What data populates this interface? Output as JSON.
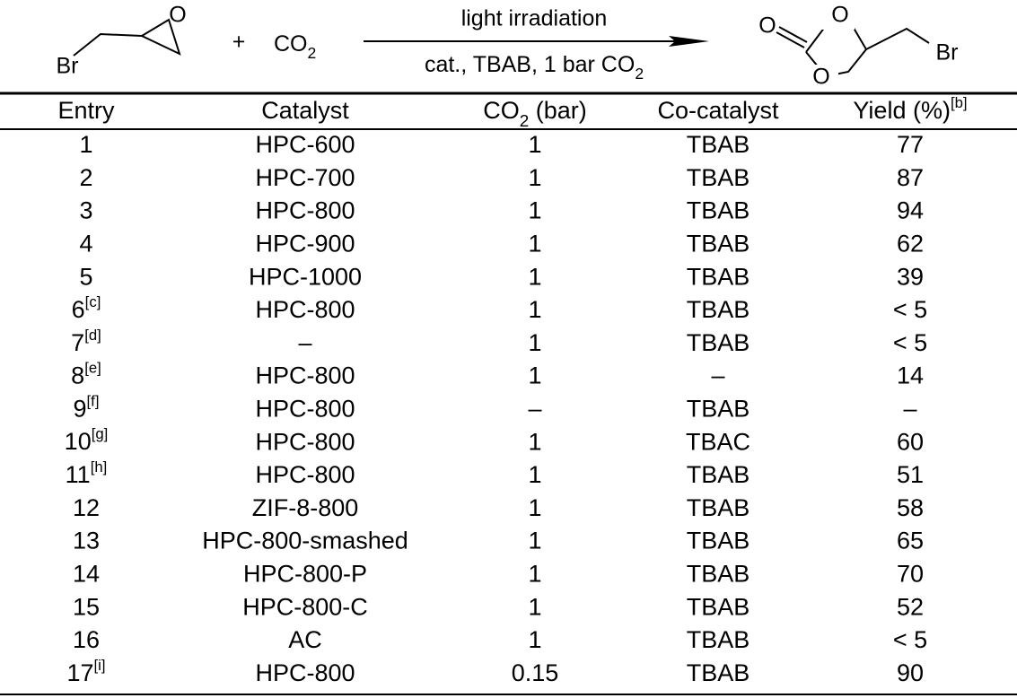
{
  "scheme": {
    "reactant_br": "Br",
    "reactant_o": "O",
    "plus": "+",
    "co2": {
      "text": "CO",
      "sub": "2"
    },
    "arrow_top": "light irradiation",
    "arrow_bottom": {
      "text": "cat., TBAB, 1 bar CO",
      "sub": "2"
    },
    "product_o_carbonyl": "O",
    "product_o_top": "O",
    "product_o_bottom": "O",
    "product_br": "Br"
  },
  "table": {
    "headers": [
      {
        "text": "Entry"
      },
      {
        "text": "Catalyst"
      },
      {
        "text": "CO",
        "sub": "2",
        "after": " (bar)"
      },
      {
        "text": "Co-catalyst"
      },
      {
        "text": "Yield (%)",
        "sup": "[b]"
      }
    ],
    "rows": [
      [
        1,
        "HPC-600",
        1,
        "TBAB",
        77
      ],
      [
        2,
        "HPC-700",
        1,
        "TBAB",
        87
      ],
      [
        3,
        "HPC-800",
        1,
        "TBAB",
        94
      ],
      [
        4,
        "HPC-900",
        1,
        "TBAB",
        62
      ],
      [
        5,
        "HPC-1000",
        1,
        "TBAB",
        39
      ],
      [
        {
          "text": "6",
          "sup": "[c]"
        },
        "HPC-800",
        1,
        "TBAB",
        "< 5"
      ],
      [
        {
          "text": "7",
          "sup": "[d]"
        },
        "–",
        1,
        "TBAB",
        "< 5"
      ],
      [
        {
          "text": "8",
          "sup": "[e]"
        },
        "HPC-800",
        1,
        "–",
        14
      ],
      [
        {
          "text": "9",
          "sup": "[f]"
        },
        "HPC-800",
        "–",
        "TBAB",
        "–"
      ],
      [
        {
          "text": "10",
          "sup": "[g]"
        },
        "HPC-800",
        1,
        "TBAC",
        60
      ],
      [
        {
          "text": "11",
          "sup": "[h]"
        },
        "HPC-800",
        1,
        "TBAB",
        51
      ],
      [
        12,
        "ZIF-8-800",
        1,
        "TBAB",
        58
      ],
      [
        13,
        "HPC-800-smashed",
        1,
        "TBAB",
        65
      ],
      [
        14,
        "HPC-800-P",
        1,
        "TBAB",
        70
      ],
      [
        15,
        "HPC-800-C",
        1,
        "TBAB",
        52
      ],
      [
        16,
        "AC",
        1,
        "TBAB",
        "< 5"
      ],
      [
        {
          "text": "17",
          "sup": "[i]"
        },
        "HPC-800",
        0.15,
        "TBAB",
        90
      ]
    ]
  }
}
